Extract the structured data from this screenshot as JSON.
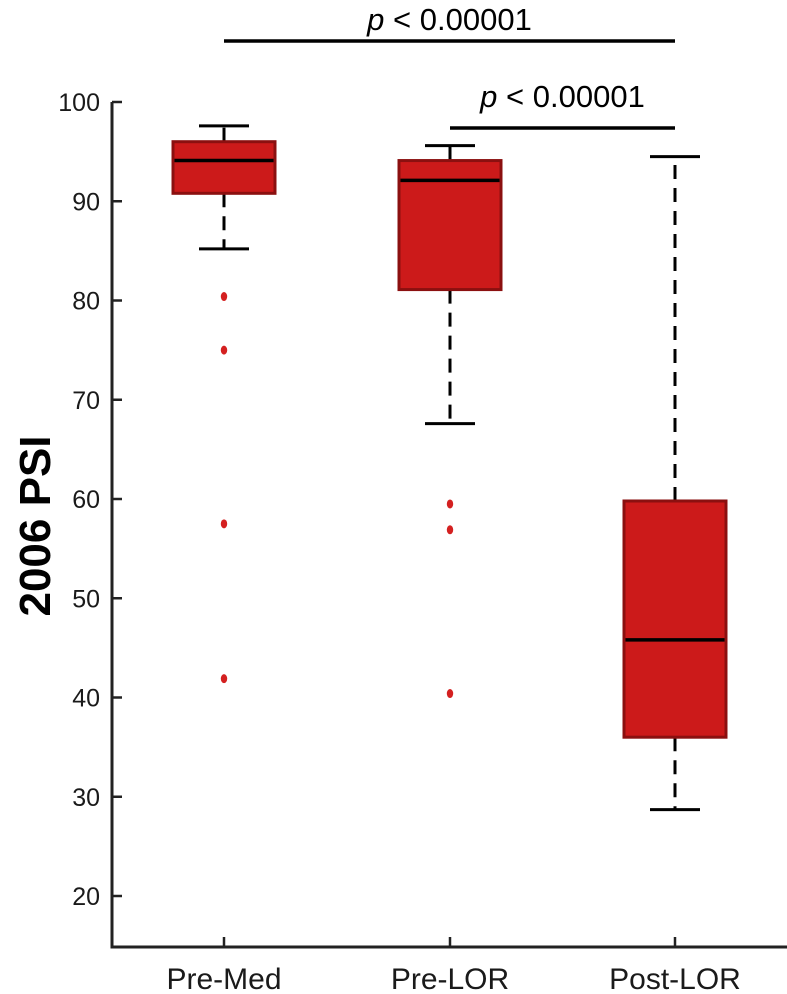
{
  "chart_data": {
    "type": "box",
    "ylabel": "2006 PSI",
    "xlabel": "",
    "ylim": [
      15,
      100
    ],
    "yticks": [
      20,
      30,
      40,
      50,
      60,
      70,
      80,
      90,
      100
    ],
    "box_color": "#cc1a1a",
    "box_edge_color": "#8b1010",
    "outlier_color": "#d42020",
    "categories": [
      "Pre-Med",
      "Pre-LOR",
      "Post-LOR"
    ],
    "boxes": [
      {
        "label": "Pre-Med",
        "whisker_low": 85.2,
        "q1": 90.8,
        "median": 94.1,
        "q3": 96.0,
        "whisker_high": 97.6,
        "outliers": [
          80.4,
          75.0,
          57.5,
          41.9
        ]
      },
      {
        "label": "Pre-LOR",
        "whisker_low": 67.6,
        "q1": 81.1,
        "median": 92.1,
        "q3": 94.1,
        "whisker_high": 95.6,
        "outliers": [
          59.5,
          56.9,
          40.4
        ]
      },
      {
        "label": "Post-LOR",
        "whisker_low": 28.7,
        "q1": 36.0,
        "median": 45.8,
        "q3": 59.8,
        "whisker_high": 94.5,
        "outliers": []
      }
    ],
    "annotations": [
      {
        "from": "Pre-Med",
        "to": "Post-LOR",
        "p_symbol": "p",
        "text": " < 0.00001"
      },
      {
        "from": "Pre-LOR",
        "to": "Post-LOR",
        "p_symbol": "p",
        "text": " < 0.00001"
      }
    ]
  }
}
